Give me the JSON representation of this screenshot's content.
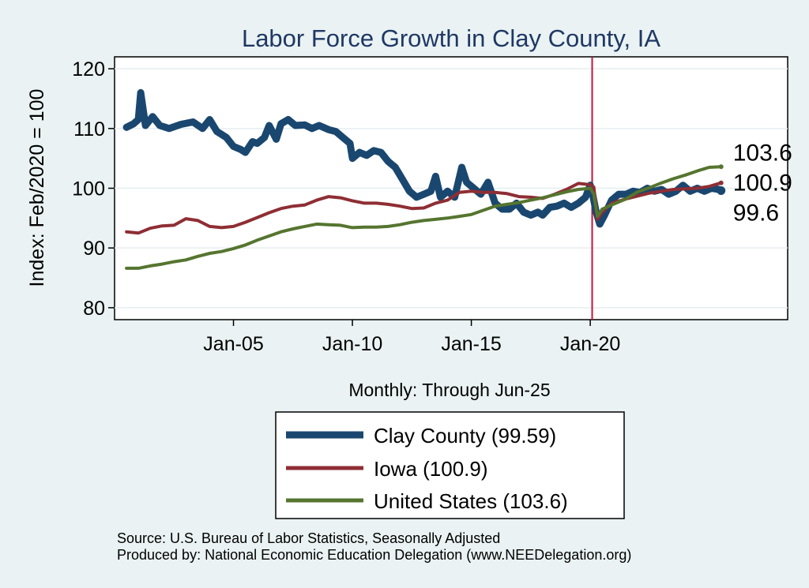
{
  "chart_data": {
    "type": "line",
    "title": "Labor Force Growth in Clay  County, IA",
    "ylabel": "Index: Feb/2020 = 100",
    "xlabel": "Monthly: Through Jun-25",
    "ylim": [
      78,
      122
    ],
    "xlim": [
      2000.0,
      2028.3
    ],
    "yticks": [
      80,
      90,
      100,
      110,
      120
    ],
    "xticks": [
      {
        "value": 2005,
        "label": "Jan-05"
      },
      {
        "value": 2010,
        "label": "Jan-10"
      },
      {
        "value": 2015,
        "label": "Jan-15"
      },
      {
        "value": 2020,
        "label": "Jan-20"
      }
    ],
    "reference_line": {
      "x": 2020.08,
      "color": "#c0143c"
    },
    "series": [
      {
        "name": "Clay  County",
        "legend": "Clay  County (99.59)",
        "color": "#1a476f",
        "width": 9,
        "end_label": "99.6",
        "points": [
          [
            2000.5,
            110.2
          ],
          [
            2000.8,
            110.8
          ],
          [
            2001.0,
            111.5
          ],
          [
            2001.1,
            116.0
          ],
          [
            2001.3,
            110.5
          ],
          [
            2001.6,
            112.0
          ],
          [
            2001.9,
            110.5
          ],
          [
            2002.3,
            110.0
          ],
          [
            2002.8,
            110.7
          ],
          [
            2003.3,
            111.1
          ],
          [
            2003.7,
            110.0
          ],
          [
            2004.0,
            111.5
          ],
          [
            2004.3,
            109.5
          ],
          [
            2004.7,
            108.5
          ],
          [
            2005.0,
            107.0
          ],
          [
            2005.3,
            106.5
          ],
          [
            2005.5,
            106.0
          ],
          [
            2005.8,
            107.8
          ],
          [
            2006.0,
            107.5
          ],
          [
            2006.3,
            108.5
          ],
          [
            2006.5,
            110.5
          ],
          [
            2006.8,
            108.2
          ],
          [
            2007.0,
            110.8
          ],
          [
            2007.3,
            111.5
          ],
          [
            2007.6,
            110.5
          ],
          [
            2008.0,
            110.6
          ],
          [
            2008.3,
            110.0
          ],
          [
            2008.6,
            110.5
          ],
          [
            2009.0,
            109.8
          ],
          [
            2009.3,
            109.5
          ],
          [
            2009.6,
            108.5
          ],
          [
            2009.9,
            107.5
          ],
          [
            2010.0,
            105.0
          ],
          [
            2010.3,
            106.0
          ],
          [
            2010.6,
            105.5
          ],
          [
            2010.9,
            106.3
          ],
          [
            2011.2,
            106.0
          ],
          [
            2011.5,
            104.5
          ],
          [
            2011.8,
            103.5
          ],
          [
            2012.1,
            101.5
          ],
          [
            2012.4,
            99.5
          ],
          [
            2012.7,
            98.5
          ],
          [
            2013.0,
            99.0
          ],
          [
            2013.3,
            99.5
          ],
          [
            2013.5,
            102.0
          ],
          [
            2013.7,
            98.5
          ],
          [
            2014.0,
            99.5
          ],
          [
            2014.3,
            98.5
          ],
          [
            2014.6,
            103.5
          ],
          [
            2014.8,
            101.0
          ],
          [
            2015.1,
            100.0
          ],
          [
            2015.4,
            99.0
          ],
          [
            2015.7,
            101.0
          ],
          [
            2016.0,
            97.5
          ],
          [
            2016.3,
            96.5
          ],
          [
            2016.6,
            96.5
          ],
          [
            2016.9,
            97.5
          ],
          [
            2017.2,
            96.0
          ],
          [
            2017.5,
            95.5
          ],
          [
            2017.8,
            96.0
          ],
          [
            2018.0,
            95.5
          ],
          [
            2018.3,
            96.8
          ],
          [
            2018.6,
            97.0
          ],
          [
            2018.9,
            97.5
          ],
          [
            2019.2,
            96.8
          ],
          [
            2019.5,
            97.5
          ],
          [
            2019.8,
            98.5
          ],
          [
            2020.0,
            100.5
          ],
          [
            2020.1,
            99.0
          ],
          [
            2020.25,
            96.0
          ],
          [
            2020.4,
            94.0
          ],
          [
            2020.6,
            95.5
          ],
          [
            2020.9,
            98.0
          ],
          [
            2021.2,
            99.0
          ],
          [
            2021.5,
            99.0
          ],
          [
            2021.8,
            99.5
          ],
          [
            2022.1,
            99.3
          ],
          [
            2022.4,
            100.0
          ],
          [
            2022.7,
            99.5
          ],
          [
            2023.0,
            99.8
          ],
          [
            2023.3,
            99.0
          ],
          [
            2023.6,
            99.5
          ],
          [
            2023.9,
            100.5
          ],
          [
            2024.2,
            99.5
          ],
          [
            2024.5,
            100.0
          ],
          [
            2024.8,
            99.5
          ],
          [
            2025.1,
            100.0
          ],
          [
            2025.4,
            99.8
          ],
          [
            2025.5,
            99.6
          ]
        ]
      },
      {
        "name": "Iowa",
        "legend": "Iowa (100.9)",
        "color": "#8e2e34",
        "width": 4,
        "end_label": "100.9",
        "points": [
          [
            2000.5,
            92.7
          ],
          [
            2001.0,
            92.5
          ],
          [
            2001.5,
            93.3
          ],
          [
            2002.0,
            93.7
          ],
          [
            2002.5,
            93.8
          ],
          [
            2003.0,
            94.9
          ],
          [
            2003.5,
            94.6
          ],
          [
            2004.0,
            93.6
          ],
          [
            2004.5,
            93.4
          ],
          [
            2005.0,
            93.6
          ],
          [
            2005.5,
            94.3
          ],
          [
            2006.0,
            95.1
          ],
          [
            2006.5,
            95.9
          ],
          [
            2007.0,
            96.6
          ],
          [
            2007.5,
            97.0
          ],
          [
            2008.0,
            97.2
          ],
          [
            2008.5,
            98.0
          ],
          [
            2009.0,
            98.6
          ],
          [
            2009.5,
            98.4
          ],
          [
            2010.0,
            97.9
          ],
          [
            2010.5,
            97.5
          ],
          [
            2011.0,
            97.5
          ],
          [
            2011.5,
            97.3
          ],
          [
            2012.0,
            97.0
          ],
          [
            2012.5,
            96.6
          ],
          [
            2013.0,
            96.7
          ],
          [
            2013.5,
            97.5
          ],
          [
            2014.0,
            98.0
          ],
          [
            2014.5,
            99.3
          ],
          [
            2015.0,
            99.5
          ],
          [
            2015.5,
            99.3
          ],
          [
            2016.0,
            99.3
          ],
          [
            2016.5,
            99.1
          ],
          [
            2017.0,
            98.6
          ],
          [
            2017.5,
            98.5
          ],
          [
            2018.0,
            98.3
          ],
          [
            2018.5,
            99.0
          ],
          [
            2019.0,
            99.8
          ],
          [
            2019.5,
            100.8
          ],
          [
            2020.0,
            100.6
          ],
          [
            2020.15,
            100.2
          ],
          [
            2020.3,
            94.8
          ],
          [
            2020.5,
            96.0
          ],
          [
            2020.9,
            97.5
          ],
          [
            2021.5,
            98.2
          ],
          [
            2022.0,
            98.7
          ],
          [
            2022.5,
            99.2
          ],
          [
            2023.0,
            99.5
          ],
          [
            2023.5,
            99.8
          ],
          [
            2024.0,
            99.9
          ],
          [
            2024.5,
            100.0
          ],
          [
            2025.0,
            100.3
          ],
          [
            2025.5,
            100.9
          ]
        ]
      },
      {
        "name": "United States",
        "legend": "United States (103.6)",
        "color": "#55752f",
        "width": 4,
        "end_label": "103.6",
        "points": [
          [
            2000.5,
            86.6
          ],
          [
            2001.0,
            86.6
          ],
          [
            2001.5,
            87.0
          ],
          [
            2002.0,
            87.3
          ],
          [
            2002.5,
            87.7
          ],
          [
            2003.0,
            88.0
          ],
          [
            2003.5,
            88.6
          ],
          [
            2004.0,
            89.1
          ],
          [
            2004.5,
            89.4
          ],
          [
            2005.0,
            89.9
          ],
          [
            2005.5,
            90.5
          ],
          [
            2006.0,
            91.3
          ],
          [
            2006.5,
            92.0
          ],
          [
            2007.0,
            92.7
          ],
          [
            2007.5,
            93.2
          ],
          [
            2008.0,
            93.6
          ],
          [
            2008.5,
            94.0
          ],
          [
            2009.0,
            93.9
          ],
          [
            2009.5,
            93.8
          ],
          [
            2010.0,
            93.4
          ],
          [
            2010.5,
            93.5
          ],
          [
            2011.0,
            93.5
          ],
          [
            2011.5,
            93.6
          ],
          [
            2012.0,
            93.9
          ],
          [
            2012.5,
            94.3
          ],
          [
            2013.0,
            94.6
          ],
          [
            2013.5,
            94.8
          ],
          [
            2014.0,
            95.0
          ],
          [
            2014.5,
            95.3
          ],
          [
            2015.0,
            95.6
          ],
          [
            2015.5,
            96.3
          ],
          [
            2016.0,
            97.0
          ],
          [
            2016.5,
            97.3
          ],
          [
            2017.0,
            97.6
          ],
          [
            2017.5,
            98.0
          ],
          [
            2018.0,
            98.4
          ],
          [
            2018.5,
            98.9
          ],
          [
            2019.0,
            99.4
          ],
          [
            2019.5,
            99.8
          ],
          [
            2020.0,
            100.0
          ],
          [
            2020.15,
            99.0
          ],
          [
            2020.3,
            95.3
          ],
          [
            2020.5,
            96.5
          ],
          [
            2020.9,
            97.2
          ],
          [
            2021.5,
            98.2
          ],
          [
            2022.0,
            99.4
          ],
          [
            2022.5,
            100.1
          ],
          [
            2023.0,
            100.9
          ],
          [
            2023.5,
            101.6
          ],
          [
            2024.0,
            102.2
          ],
          [
            2024.5,
            102.9
          ],
          [
            2025.0,
            103.5
          ],
          [
            2025.5,
            103.6
          ]
        ]
      }
    ],
    "source_lines": [
      "Source: U.S. Bureau of Labor Statistics, Seasonally Adjusted",
      "Produced by: National Economic Education Delegation (www.NEEDelegation.org)"
    ]
  }
}
